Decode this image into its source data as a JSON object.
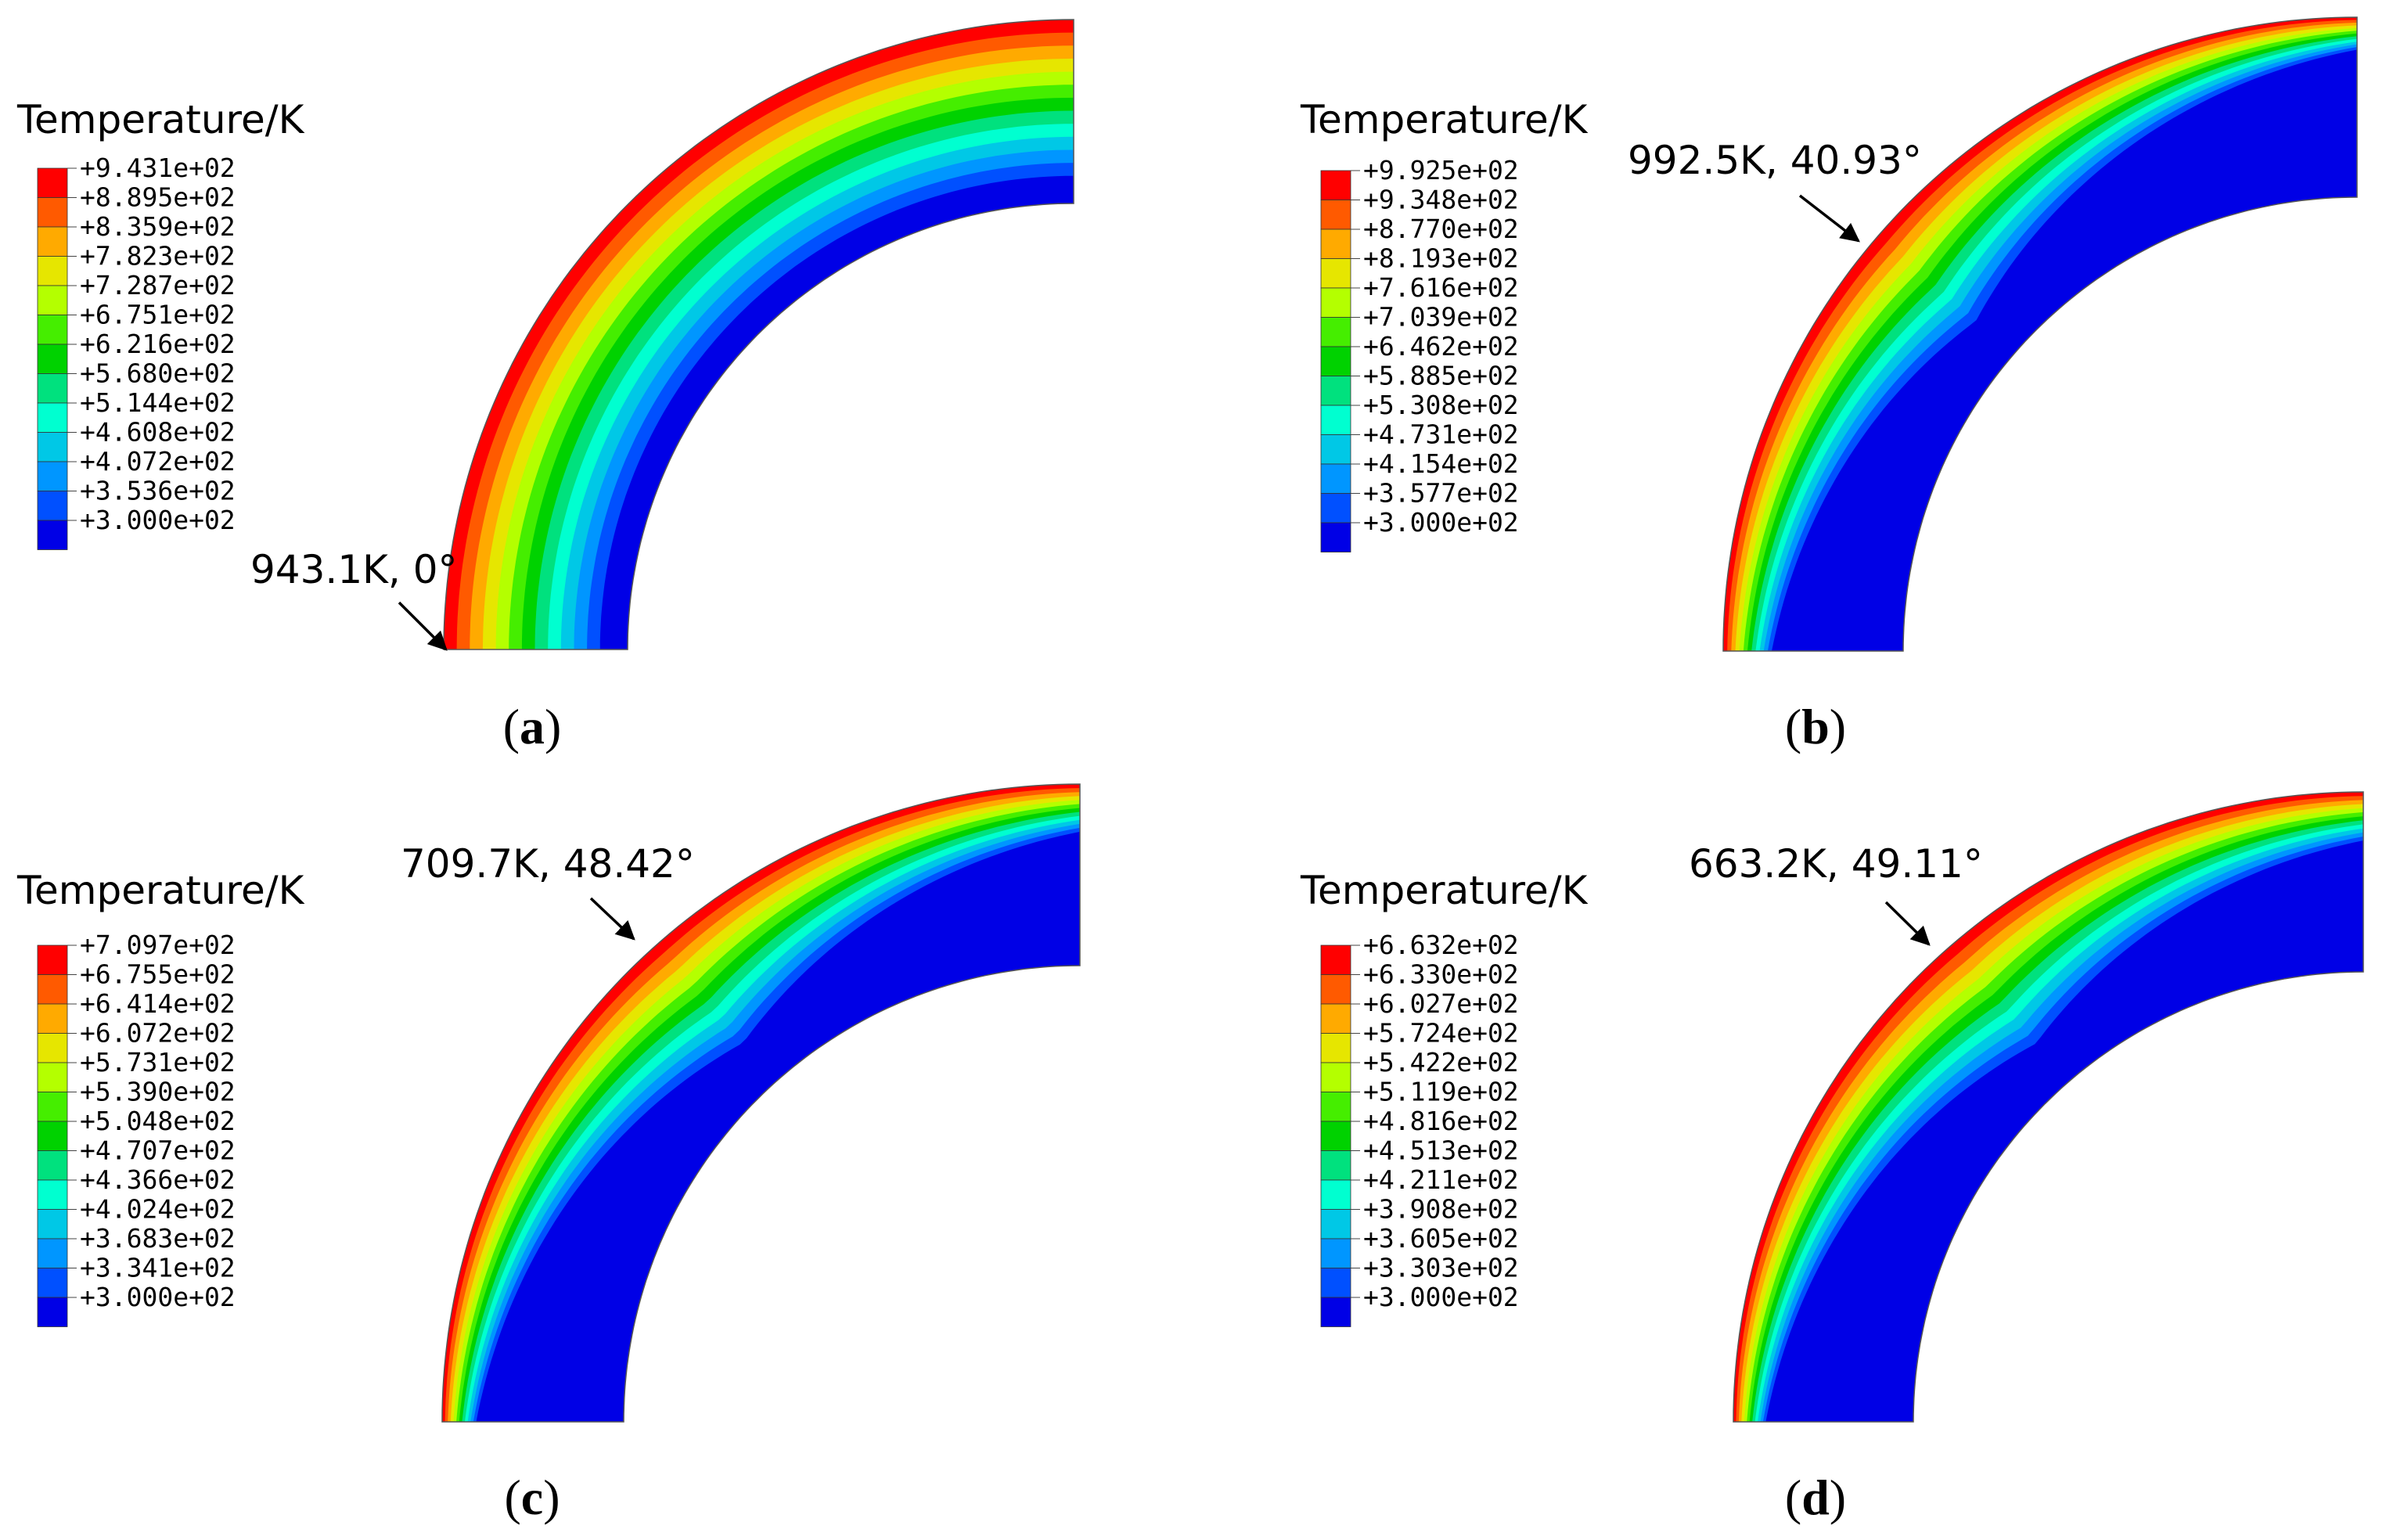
{
  "colors": [
    "#ff0000",
    "#ff5a00",
    "#ffaa00",
    "#e6e600",
    "#b4ff00",
    "#45ee00",
    "#00d200",
    "#00e17e",
    "#00ffd0",
    "#00c8e6",
    "#0096ff",
    "#0050ff",
    "#0000e6"
  ],
  "panels": [
    {
      "id": "a",
      "label": "a",
      "legend_title": "Temperature/K",
      "ticks": [
        "+9.431e+02",
        "+8.895e+02",
        "+8.359e+02",
        "+7.823e+02",
        "+7.287e+02",
        "+6.751e+02",
        "+6.216e+02",
        "+5.680e+02",
        "+5.144e+02",
        "+4.608e+02",
        "+4.072e+02",
        "+3.536e+02",
        "+3.000e+02"
      ],
      "hotspot": "943.1K, 0°",
      "hotspot_angle_deg": 0
    },
    {
      "id": "b",
      "label": "b",
      "legend_title": "Temperature/K",
      "ticks": [
        "+9.925e+02",
        "+9.348e+02",
        "+8.770e+02",
        "+8.193e+02",
        "+7.616e+02",
        "+7.039e+02",
        "+6.462e+02",
        "+5.885e+02",
        "+5.308e+02",
        "+4.731e+02",
        "+4.154e+02",
        "+3.577e+02",
        "+3.000e+02"
      ],
      "hotspot": "992.5K, 40.93°",
      "hotspot_angle_deg": 40.93
    },
    {
      "id": "c",
      "label": "c",
      "legend_title": "Temperature/K",
      "ticks": [
        "+7.097e+02",
        "+6.755e+02",
        "+6.414e+02",
        "+6.072e+02",
        "+5.731e+02",
        "+5.390e+02",
        "+5.048e+02",
        "+4.707e+02",
        "+4.366e+02",
        "+4.024e+02",
        "+3.683e+02",
        "+3.341e+02",
        "+3.000e+02"
      ],
      "hotspot": "709.7K, 48.42°",
      "hotspot_angle_deg": 48.42
    },
    {
      "id": "d",
      "label": "d",
      "legend_title": "Temperature/K",
      "ticks": [
        "+6.632e+02",
        "+6.330e+02",
        "+6.027e+02",
        "+5.724e+02",
        "+5.422e+02",
        "+5.119e+02",
        "+4.816e+02",
        "+4.513e+02",
        "+4.211e+02",
        "+3.908e+02",
        "+3.605e+02",
        "+3.303e+02",
        "+3.000e+02"
      ],
      "hotspot": "663.2K, 49.11°",
      "hotspot_angle_deg": 49.11
    }
  ]
}
